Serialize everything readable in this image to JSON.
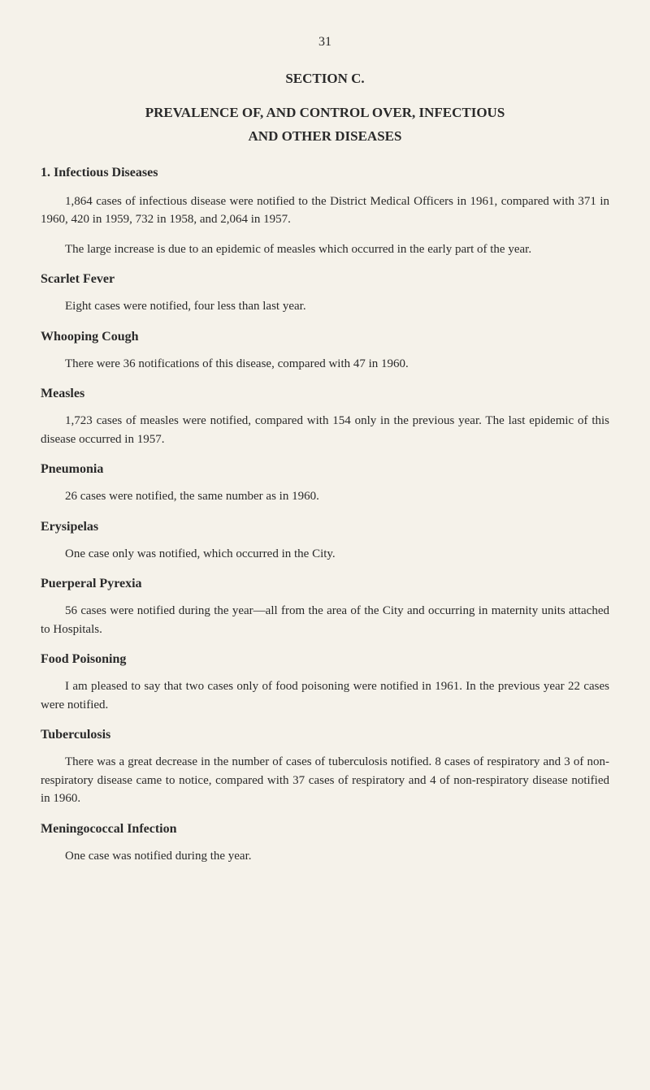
{
  "page_number": "31",
  "section_label": "SECTION C.",
  "title_line1": "PREVALENCE OF, AND CONTROL OVER, INFECTIOUS",
  "title_line2": "AND OTHER DISEASES",
  "heading_1": "1. Infectious Diseases",
  "para_1a": "1,864 cases of infectious disease were notified to the District Medical Officers in 1961, compared with 371 in 1960, 420 in 1959, 732 in 1958, and 2,064 in 1957.",
  "para_1b": "The large increase is due to an epidemic of measles which occurred in the early part of the year.",
  "heading_scarlet": "Scarlet Fever",
  "para_scarlet": "Eight cases were notified, four less than last year.",
  "heading_whooping": "Whooping Cough",
  "para_whooping": "There were 36 notifications of this disease, compared with 47 in 1960.",
  "heading_measles": "Measles",
  "para_measles": "1,723 cases of measles were notified, compared with 154 only in the previous year. The last epidemic of this disease occurred in 1957.",
  "heading_pneumonia": "Pneumonia",
  "para_pneumonia": "26 cases were notified, the same number as in 1960.",
  "heading_erysipelas": "Erysipelas",
  "para_erysipelas": "One case only was notified, which occurred in the City.",
  "heading_puerperal": "Puerperal Pyrexia",
  "para_puerperal": "56 cases were notified during the year—all from the area of the City and occurring in maternity units attached to Hospitals.",
  "heading_food": "Food Poisoning",
  "para_food": "I am pleased to say that two cases only of food poisoning were notified in 1961. In the previous year 22 cases were notified.",
  "heading_tb": "Tuberculosis",
  "para_tb": "There was a great decrease in the number of cases of tuberculosis notified. 8 cases of respiratory and 3 of non-respiratory disease came to notice, compared with 37 cases of respiratory and 4 of non-respiratory disease notified in 1960.",
  "heading_meningo": "Meningococcal Infection",
  "para_meningo": "One case was notified during the year."
}
